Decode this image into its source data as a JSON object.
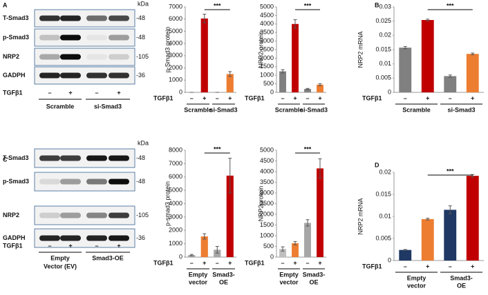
{
  "panels": [
    "A",
    "B",
    "C",
    "D"
  ],
  "blots": [
    {
      "unit": "kDa",
      "rows": [
        {
          "label": "T-Smad3",
          "kda": "-48"
        },
        {
          "label": "p-Smad3",
          "kda": "-48"
        },
        {
          "label": "NRP2",
          "kda": "-105"
        },
        {
          "label": "GADPH",
          "kda": "-36"
        }
      ],
      "treatment_label": "TGFβ1",
      "treatments": [
        "–",
        "+",
        "–",
        "+"
      ],
      "groups": [
        [
          "Scramble"
        ],
        [
          "si-Smad3"
        ]
      ]
    },
    {
      "unit": "kDa",
      "rows": [
        {
          "label": "T-Smad3",
          "kda": "-48"
        },
        {
          "label": "p-Smad3",
          "kda": "-48"
        },
        {
          "label": "NRP2",
          "kda": "-105"
        },
        {
          "label": "GADPH",
          "kda": "-36"
        }
      ],
      "treatment_label": "TGFβ1",
      "treatments": [
        "–",
        "+",
        "–",
        "+"
      ],
      "groups": [
        [
          "Empty",
          "Vector (EV)"
        ],
        [
          "Smad3-OE"
        ]
      ]
    }
  ],
  "chart_data": [
    {
      "type": "bar",
      "y_label": "p-Smad3 protein",
      "x_row_label": "TGFβ1",
      "categories": [
        "–",
        "+",
        "–",
        "+"
      ],
      "groups": [
        [
          "Scramble"
        ],
        [
          "si-Smad3"
        ]
      ],
      "values": [
        0,
        6050,
        0,
        1500
      ],
      "errors": [
        0,
        350,
        0,
        200
      ],
      "colors": [
        "#808080",
        "#c00000",
        "#808080",
        "#ed7d31"
      ],
      "ylim": [
        0,
        7000
      ],
      "yticks": [
        0,
        1000,
        2000,
        3000,
        4000,
        5000,
        6000,
        7000
      ],
      "significance": "***"
    },
    {
      "type": "bar",
      "y_label": "NRP2  protein",
      "x_row_label": "TGFβ1",
      "categories": [
        "–",
        "+",
        "–",
        "+"
      ],
      "groups": [
        [
          "Scramble"
        ],
        [
          "si-Smad3"
        ]
      ],
      "values": [
        1230,
        4000,
        200,
        450
      ],
      "errors": [
        100,
        250,
        30,
        60
      ],
      "colors": [
        "#808080",
        "#c00000",
        "#808080",
        "#ed7d31"
      ],
      "ylim": [
        0,
        5000
      ],
      "yticks": [
        0,
        500,
        1000,
        1500,
        2000,
        2500,
        3000,
        3500,
        4000,
        4500,
        5000
      ],
      "significance": "***"
    },
    {
      "type": "bar",
      "y_label": "NRP2 mRNA",
      "x_row_label": "TGFβ1",
      "categories": [
        "–",
        "+",
        "–",
        "+"
      ],
      "groups": [
        [
          "Scramble"
        ],
        [
          "si-Smad3"
        ]
      ],
      "values": [
        0.0157,
        0.0254,
        0.0057,
        0.0135
      ],
      "errors": [
        0.0004,
        0.0003,
        0.0004,
        0.0003
      ],
      "colors": [
        "#808080",
        "#c00000",
        "#808080",
        "#ed7d31"
      ],
      "ylim": [
        0,
        0.03
      ],
      "yticks": [
        0,
        0.005,
        0.01,
        0.015,
        0.02,
        0.025,
        0.03
      ],
      "significance": "***"
    },
    {
      "type": "bar",
      "y_label": "p-smad3 protein",
      "x_row_label": "TGFβ1",
      "categories": [
        "–",
        "+",
        "–",
        "+"
      ],
      "groups": [
        [
          "Empty",
          "vector"
        ],
        [
          "Smad3-",
          "OE"
        ]
      ],
      "values": [
        150,
        1550,
        550,
        6100
      ],
      "errors": [
        50,
        200,
        250,
        1300
      ],
      "colors": [
        "#a6a6a6",
        "#ed7d31",
        "#a6a6a6",
        "#c00000"
      ],
      "ylim": [
        0,
        8000
      ],
      "yticks": [
        0,
        1000,
        2000,
        3000,
        4000,
        5000,
        6000,
        7000,
        8000
      ],
      "significance": "***"
    },
    {
      "type": "bar",
      "y_label": "NRP2protein",
      "x_row_label": "TGFβ1",
      "categories": [
        "–",
        "+",
        "–",
        "+"
      ],
      "groups": [
        [
          "Empty",
          "vector"
        ],
        [
          "Smad3-",
          "OE"
        ]
      ],
      "values": [
        380,
        650,
        1600,
        4150
      ],
      "errors": [
        100,
        80,
        150,
        450
      ],
      "colors": [
        "#bfbfbf",
        "#ed7d31",
        "#a6a6a6",
        "#c00000"
      ],
      "ylim": [
        0,
        5000
      ],
      "yticks": [
        0,
        500,
        1000,
        1500,
        2000,
        2500,
        3000,
        3500,
        4000,
        4500,
        5000
      ],
      "significance": "***"
    },
    {
      "type": "bar",
      "y_label": "NRP2 mRNA",
      "x_row_label": "TGFβ1",
      "categories": [
        "–",
        "+",
        "–",
        "+"
      ],
      "groups": [
        [
          "Empty",
          "vector"
        ],
        [
          "Smad3-",
          "OE"
        ]
      ],
      "values": [
        0.0024,
        0.0094,
        0.0115,
        0.0192
      ],
      "errors": [
        0.0001,
        0.0002,
        0.0009,
        0.0003
      ],
      "colors": [
        "#1f3864",
        "#ed7d31",
        "#1f3864",
        "#c00000"
      ],
      "ylim": [
        0,
        0.02
      ],
      "yticks": [
        0,
        0.005,
        0.01,
        0.015,
        0.02
      ],
      "significance": "***"
    }
  ]
}
